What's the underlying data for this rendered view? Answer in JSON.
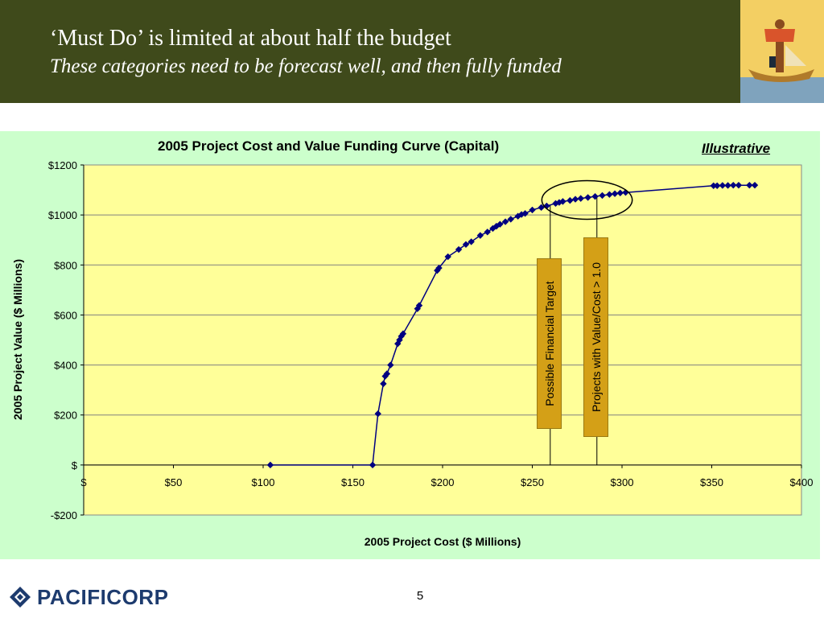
{
  "slide": {
    "title": "‘Must Do’ is limited at about half the budget",
    "subtitle": "These categories need to be forecast well, and then fully funded",
    "illustrative_label": "Illustrative",
    "page_number": "5",
    "brand": "PACIFICORP"
  },
  "annotations": {
    "target_label": "Possible Financial Target",
    "value_cost_label": "Projects with Value/Cost > 1.0",
    "target_x": 260,
    "value_cost_x": 286
  },
  "chart_data": {
    "type": "line",
    "title": "2005 Project Cost and Value Funding Curve (Capital)",
    "xlabel": "2005 Project Cost ($ Millions)",
    "ylabel": "2005 Project Value ($ Millions)",
    "xlim": [
      0,
      400
    ],
    "ylim": [
      -200,
      1200
    ],
    "x_ticks": [
      0,
      50,
      100,
      150,
      200,
      250,
      300,
      350,
      400
    ],
    "x_tick_labels": [
      "$",
      "$50",
      "$100",
      "$150",
      "$200",
      "$250",
      "$300",
      "$350",
      "$400"
    ],
    "y_ticks": [
      -200,
      0,
      200,
      400,
      600,
      800,
      1000,
      1200
    ],
    "y_tick_labels": [
      "-$200",
      "$",
      "$200",
      "$400",
      "$600",
      "$800",
      "$1000",
      "$1200"
    ],
    "grid": true,
    "series": [
      {
        "color": "#000080",
        "marker": "diamond",
        "points": [
          [
            104,
            0
          ],
          [
            161,
            0
          ],
          [
            164,
            205
          ],
          [
            167,
            325
          ],
          [
            168,
            355
          ],
          [
            169,
            365
          ],
          [
            171,
            400
          ],
          [
            175,
            485
          ],
          [
            176,
            500
          ],
          [
            177,
            515
          ],
          [
            178,
            525
          ],
          [
            186,
            625
          ],
          [
            187,
            638
          ],
          [
            197,
            778
          ],
          [
            198,
            788
          ],
          [
            203,
            833
          ],
          [
            209,
            862
          ],
          [
            213,
            882
          ],
          [
            216,
            893
          ],
          [
            221,
            918
          ],
          [
            225,
            932
          ],
          [
            228,
            946
          ],
          [
            230,
            955
          ],
          [
            232,
            963
          ],
          [
            235,
            973
          ],
          [
            238,
            983
          ],
          [
            242,
            995
          ],
          [
            244,
            1002
          ],
          [
            246,
            1006
          ],
          [
            250,
            1020
          ],
          [
            255,
            1030
          ],
          [
            258,
            1036
          ],
          [
            263,
            1046
          ],
          [
            265,
            1050
          ],
          [
            267,
            1054
          ],
          [
            271,
            1058
          ],
          [
            274,
            1063
          ],
          [
            277,
            1066
          ],
          [
            281,
            1070
          ],
          [
            285,
            1074
          ],
          [
            289,
            1078
          ],
          [
            293,
            1082
          ],
          [
            296,
            1085
          ],
          [
            299,
            1088
          ],
          [
            302,
            1090
          ],
          [
            351,
            1117
          ],
          [
            353,
            1117
          ],
          [
            356,
            1118
          ],
          [
            359,
            1118
          ],
          [
            362,
            1119
          ],
          [
            365,
            1119
          ],
          [
            371,
            1119
          ],
          [
            374,
            1119
          ]
        ]
      }
    ]
  }
}
